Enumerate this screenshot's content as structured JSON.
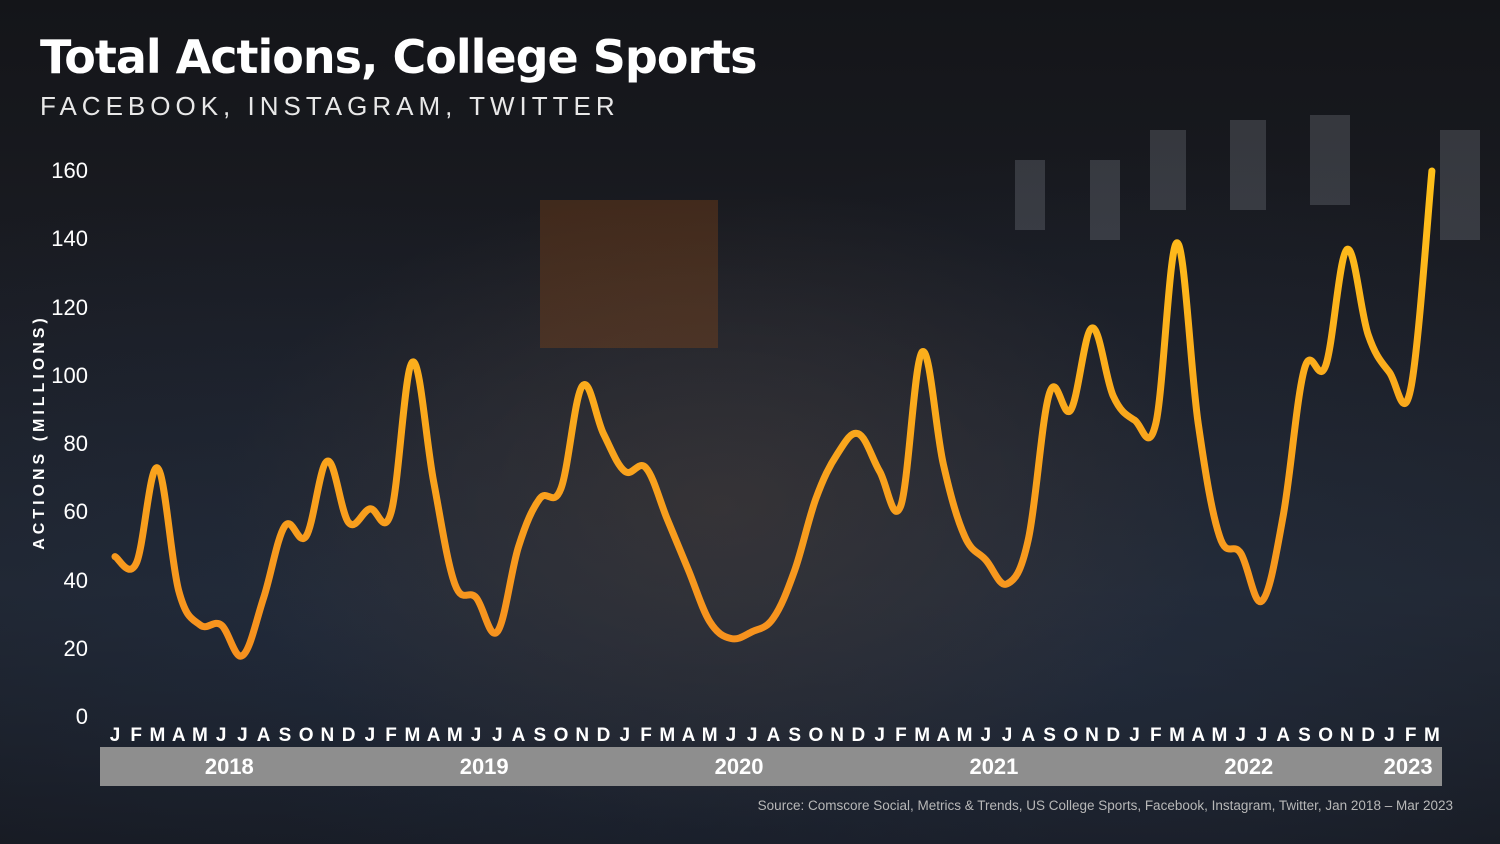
{
  "title": "Total Actions, College Sports",
  "subtitle": "FACEBOOK, INSTAGRAM, TWITTER",
  "source": "Source: Comscore Social, Metrics & Trends, US College Sports, Facebook, Instagram, Twitter, Jan 2018 – Mar 2023",
  "colors": {
    "line_low": "#f58a1f",
    "line_high": "#ffc21a",
    "year_box": "#8e8e8e"
  },
  "chart_data": {
    "type": "line",
    "title": "Total Actions, College Sports",
    "subtitle": "FACEBOOK, INSTAGRAM, TWITTER",
    "ylabel": "ACTIONS (MILLIONS)",
    "xlabel": "",
    "ylim": [
      0,
      160
    ],
    "yticks": [
      0,
      20,
      40,
      60,
      80,
      100,
      120,
      140,
      160
    ],
    "grid": false,
    "legend": "none",
    "years": [
      "2018",
      "2019",
      "2020",
      "2021",
      "2022",
      "2023"
    ],
    "month_labels": [
      "J",
      "F",
      "M",
      "A",
      "M",
      "J",
      "J",
      "A",
      "S",
      "O",
      "N",
      "D",
      "J",
      "F",
      "M",
      "A",
      "M",
      "J",
      "J",
      "A",
      "S",
      "O",
      "N",
      "D",
      "J",
      "F",
      "M",
      "A",
      "M",
      "J",
      "J",
      "A",
      "S",
      "O",
      "N",
      "D",
      "J",
      "F",
      "M",
      "A",
      "M",
      "J",
      "J",
      "A",
      "S",
      "O",
      "N",
      "D",
      "J",
      "F",
      "M",
      "A",
      "M",
      "J",
      "J",
      "A",
      "S",
      "O",
      "N",
      "D",
      "J",
      "F",
      "M"
    ],
    "series": [
      {
        "values": [
          47,
          45,
          73,
          37,
          27,
          27,
          18,
          35,
          56,
          53,
          75,
          57,
          61,
          60,
          104,
          69,
          39,
          35,
          25,
          50,
          64,
          67,
          97,
          83,
          72,
          73,
          58,
          43,
          28,
          23,
          25,
          29,
          43,
          64,
          77,
          83,
          72,
          62,
          107,
          74,
          53,
          46,
          39,
          52,
          95,
          90,
          114,
          94,
          87,
          86,
          139,
          86,
          53,
          48,
          34,
          59,
          102,
          103,
          137,
          112,
          101,
          96,
          160
        ]
      }
    ]
  }
}
